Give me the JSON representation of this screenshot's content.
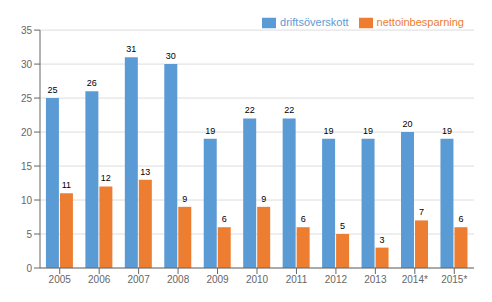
{
  "chart_data": {
    "type": "bar",
    "categories": [
      "2005",
      "2006",
      "2007",
      "2008",
      "2009",
      "2010",
      "2011",
      "2012",
      "2013",
      "2014*",
      "2015*"
    ],
    "series": [
      {
        "name": "driftsöverskott",
        "color": "#5B9BD5",
        "values": [
          25,
          26,
          31,
          30,
          19,
          22,
          22,
          19,
          19,
          20,
          19
        ]
      },
      {
        "name": "nettoinbesparning",
        "color": "#ED7D31",
        "values": [
          11,
          12,
          13,
          9,
          6,
          9,
          6,
          5,
          3,
          7,
          6
        ]
      }
    ],
    "ylim": [
      0,
      35
    ],
    "yticks": [
      0,
      5,
      10,
      15,
      20,
      25,
      30,
      35
    ],
    "grid": true,
    "legend": "upper right",
    "data_labels": true
  }
}
